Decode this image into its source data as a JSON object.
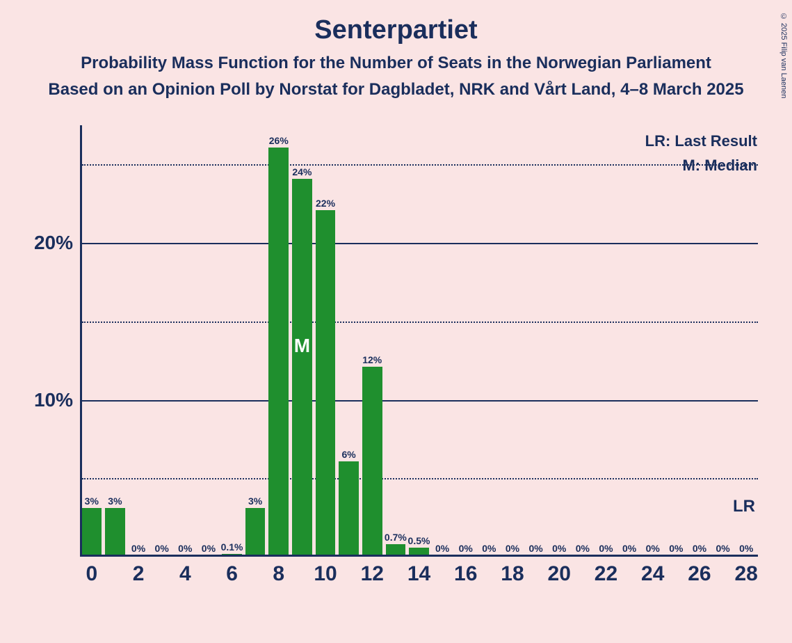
{
  "title": "Senterpartiet",
  "subtitle1": "Probability Mass Function for the Number of Seats in the Norwegian Parliament",
  "subtitle2": "Based on an Opinion Poll by Norstat for Dagbladet, NRK and Vårt Land, 4–8 March 2025",
  "copyright": "© 2025 Filip van Laenen",
  "legend_lr": "LR: Last Result",
  "legend_m": "M: Median",
  "lr_label": "LR",
  "median_label": "M",
  "chart": {
    "type": "bar",
    "background_color": "#fae4e4",
    "bar_color": "#1f8f2e",
    "text_color": "#1a2e5c",
    "axis_color": "#1a2e5c",
    "grid_solid_color": "#1a2e5c",
    "grid_dotted_color": "#1a2e5c",
    "title_fontsize": 38,
    "subtitle_fontsize": 24,
    "ylabel_fontsize": 28,
    "xlabel_fontsize": 30,
    "barlabel_fontsize": 14,
    "y_max": 27.5,
    "y_ticks_major": [
      10,
      20
    ],
    "y_ticks_minor": [
      5,
      15,
      25
    ],
    "x_min": 0,
    "x_max": 28,
    "x_tick_step": 2,
    "x_ticks": [
      0,
      2,
      4,
      6,
      8,
      10,
      12,
      14,
      16,
      18,
      20,
      22,
      24,
      26,
      28
    ],
    "bar_width_ratio": 0.85,
    "median_seat": 9,
    "lr_seat": 28,
    "lr_y_value": 3.2,
    "data": [
      {
        "seat": 0,
        "value": 3,
        "label": "3%"
      },
      {
        "seat": 1,
        "value": 3,
        "label": "3%"
      },
      {
        "seat": 2,
        "value": 0,
        "label": "0%"
      },
      {
        "seat": 3,
        "value": 0,
        "label": "0%"
      },
      {
        "seat": 4,
        "value": 0,
        "label": "0%"
      },
      {
        "seat": 5,
        "value": 0,
        "label": "0%"
      },
      {
        "seat": 6,
        "value": 0.1,
        "label": "0.1%"
      },
      {
        "seat": 7,
        "value": 3,
        "label": "3%"
      },
      {
        "seat": 8,
        "value": 26,
        "label": "26%"
      },
      {
        "seat": 9,
        "value": 24,
        "label": "24%"
      },
      {
        "seat": 10,
        "value": 22,
        "label": "22%"
      },
      {
        "seat": 11,
        "value": 6,
        "label": "6%"
      },
      {
        "seat": 12,
        "value": 12,
        "label": "12%"
      },
      {
        "seat": 13,
        "value": 0.7,
        "label": "0.7%"
      },
      {
        "seat": 14,
        "value": 0.5,
        "label": "0.5%"
      },
      {
        "seat": 15,
        "value": 0,
        "label": "0%"
      },
      {
        "seat": 16,
        "value": 0,
        "label": "0%"
      },
      {
        "seat": 17,
        "value": 0,
        "label": "0%"
      },
      {
        "seat": 18,
        "value": 0,
        "label": "0%"
      },
      {
        "seat": 19,
        "value": 0,
        "label": "0%"
      },
      {
        "seat": 20,
        "value": 0,
        "label": "0%"
      },
      {
        "seat": 21,
        "value": 0,
        "label": "0%"
      },
      {
        "seat": 22,
        "value": 0,
        "label": "0%"
      },
      {
        "seat": 23,
        "value": 0,
        "label": "0%"
      },
      {
        "seat": 24,
        "value": 0,
        "label": "0%"
      },
      {
        "seat": 25,
        "value": 0,
        "label": "0%"
      },
      {
        "seat": 26,
        "value": 0,
        "label": "0%"
      },
      {
        "seat": 27,
        "value": 0,
        "label": "0%"
      },
      {
        "seat": 28,
        "value": 0,
        "label": "0%"
      }
    ]
  }
}
